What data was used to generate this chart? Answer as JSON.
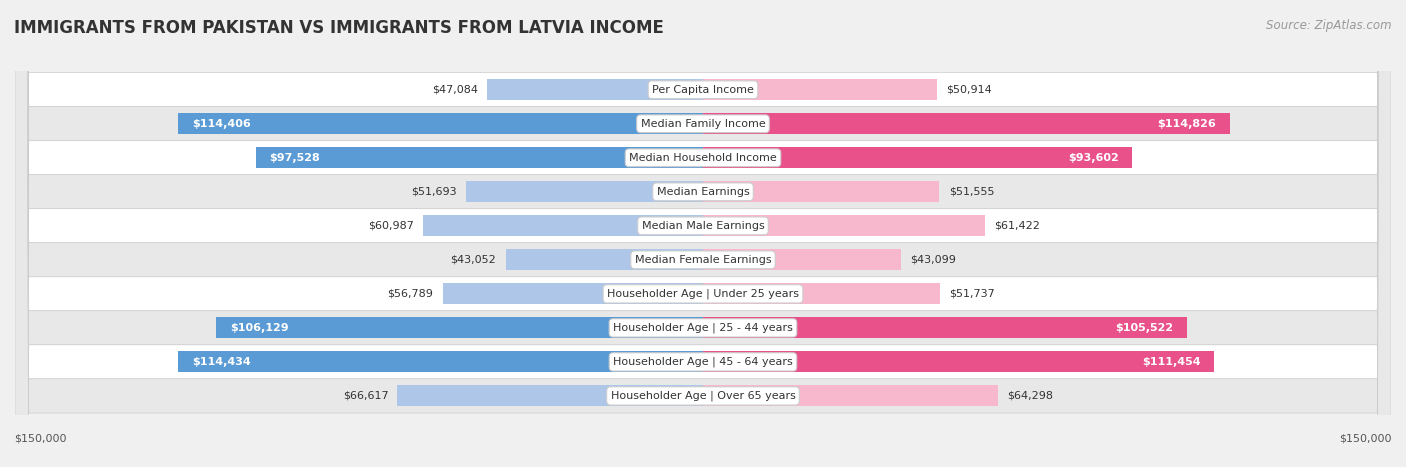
{
  "title": "IMMIGRANTS FROM PAKISTAN VS IMMIGRANTS FROM LATVIA INCOME",
  "source": "Source: ZipAtlas.com",
  "categories": [
    "Per Capita Income",
    "Median Family Income",
    "Median Household Income",
    "Median Earnings",
    "Median Male Earnings",
    "Median Female Earnings",
    "Householder Age | Under 25 years",
    "Householder Age | 25 - 44 years",
    "Householder Age | 45 - 64 years",
    "Householder Age | Over 65 years"
  ],
  "pakistan_values": [
    47084,
    114406,
    97528,
    51693,
    60987,
    43052,
    56789,
    106129,
    114434,
    66617
  ],
  "latvia_values": [
    50914,
    114826,
    93602,
    51555,
    61422,
    43099,
    51737,
    105522,
    111454,
    64298
  ],
  "pakistan_color_light": "#aec6e8",
  "pakistan_color_dark": "#5b9bd5",
  "latvia_color_light": "#f7b8ce",
  "latvia_color_dark": "#e8518a",
  "pakistan_label": "Immigrants from Pakistan",
  "latvia_label": "Immigrants from Latvia",
  "xlim": 150000,
  "background_color": "#f0f0f0",
  "row_bg_light": "#ffffff",
  "row_bg_dark": "#e8e8e8",
  "title_fontsize": 12,
  "source_fontsize": 8.5,
  "cat_fontsize": 8,
  "value_fontsize": 8,
  "legend_fontsize": 8.5,
  "threshold_dark": 80000
}
